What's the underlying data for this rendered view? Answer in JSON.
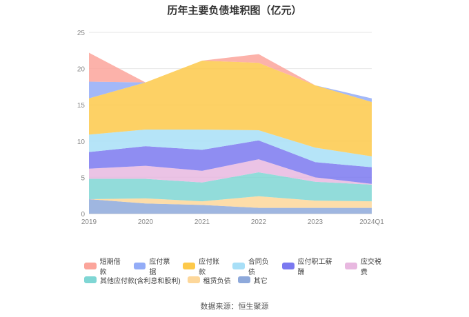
{
  "chart_data": {
    "type": "area",
    "stacked": true,
    "title": "历年主要负债堆积图（亿元）",
    "categories": [
      "2019",
      "2020",
      "2021",
      "2022",
      "2023",
      "2024Q1"
    ],
    "ylim": [
      0,
      25
    ],
    "yticks": [
      0,
      5,
      10,
      15,
      20,
      25
    ],
    "grid": true,
    "legend_position": "bottom",
    "series": [
      {
        "name": "其它",
        "color": "#8ea9db",
        "values": [
          2.0,
          1.4,
          1.2,
          0.8,
          0.8,
          0.8
        ]
      },
      {
        "name": "租赁负债",
        "color": "#fdd79a",
        "values": [
          0.0,
          0.7,
          0.5,
          1.6,
          1.0,
          0.9
        ]
      },
      {
        "name": "其他应付款(含利息和股利)",
        "color": "#7fd6d4",
        "values": [
          2.8,
          2.7,
          2.6,
          3.3,
          2.6,
          2.3
        ]
      },
      {
        "name": "应交税费",
        "color": "#e8b8e0",
        "values": [
          1.4,
          1.8,
          1.6,
          1.8,
          0.6,
          0.1
        ]
      },
      {
        "name": "应付职工薪酬",
        "color": "#7b79f0",
        "values": [
          2.3,
          2.7,
          2.9,
          2.6,
          2.1,
          2.3
        ]
      },
      {
        "name": "合同负债",
        "color": "#a8dff7",
        "values": [
          2.4,
          2.3,
          2.8,
          1.4,
          2.0,
          1.5
        ]
      },
      {
        "name": "应付账款",
        "color": "#fdc94a",
        "values": [
          5.0,
          6.5,
          9.5,
          9.3,
          8.6,
          7.5
        ]
      },
      {
        "name": "应付票据",
        "color": "#93acf7",
        "values": [
          2.3,
          0.0,
          0.0,
          0.0,
          0.0,
          0.5
        ]
      },
      {
        "name": "短期借款",
        "color": "#fba59b",
        "values": [
          4.0,
          0.0,
          0.0,
          1.2,
          0.0,
          0.0
        ]
      }
    ],
    "legend_order": [
      "短期借款",
      "应付票据",
      "应付账款",
      "合同负债",
      "应付职工薪酬",
      "应交税费",
      "其他应付款(含利息和股利)",
      "租赁负债",
      "其它"
    ]
  },
  "source_text": "数据来源：恒生聚源"
}
